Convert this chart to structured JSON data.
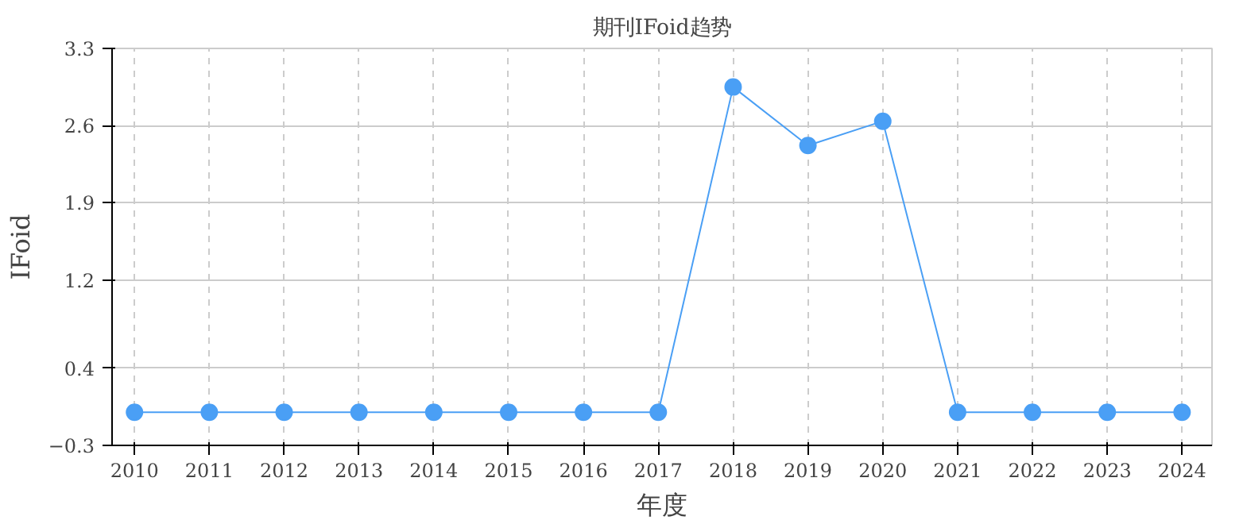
{
  "chart_data": {
    "type": "line",
    "title": "期刊IFoid趋势",
    "xlabel": "年度",
    "ylabel": "IFoid",
    "categories": [
      "2010",
      "2011",
      "2012",
      "2013",
      "2014",
      "2015",
      "2016",
      "2017",
      "2018",
      "2019",
      "2020",
      "2021",
      "2022",
      "2023",
      "2024"
    ],
    "series": [
      {
        "color": "#4a9ff5",
        "values": [
          0,
          0,
          0,
          0,
          0,
          0,
          0,
          0,
          2.95,
          2.42,
          2.64,
          0,
          0,
          0,
          0
        ]
      }
    ],
    "ylim": [
      -0.3,
      3.3
    ],
    "yticks": [
      -0.3,
      0.4,
      1.2,
      1.9,
      2.6,
      3.3
    ],
    "grid": true,
    "marker": "circle",
    "line_style": "solid"
  }
}
